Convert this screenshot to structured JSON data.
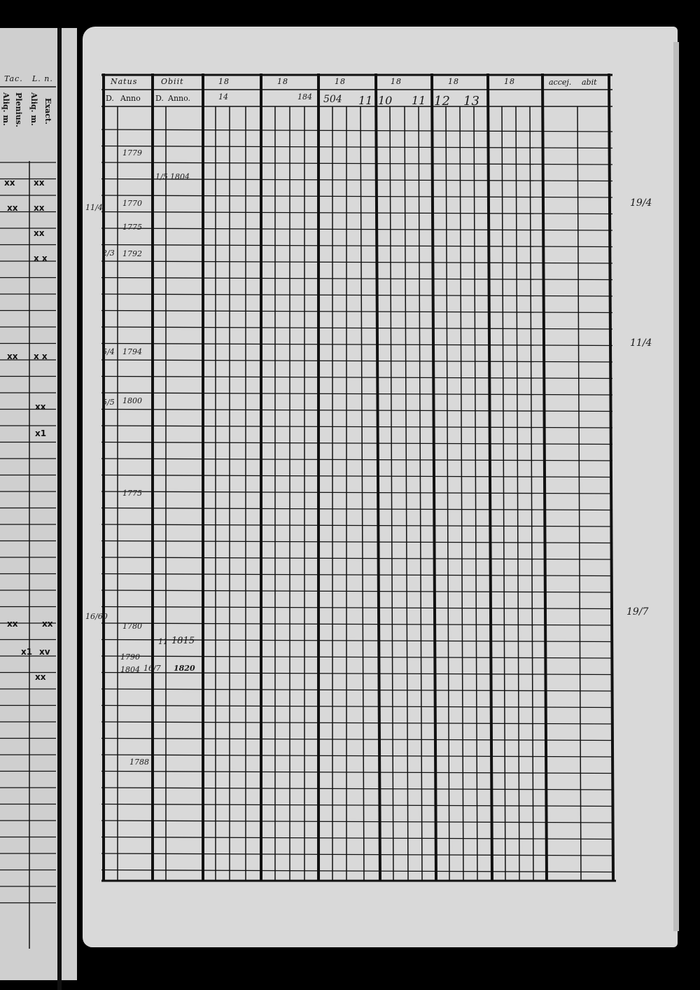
{
  "left_page": {
    "headers": [
      "Tac.",
      "L. n."
    ],
    "subheaders": [
      "Aliq. m.",
      "Plenius.",
      "Aliq. m.",
      "Exact."
    ],
    "marks": [
      "xx",
      "xx",
      "xx",
      "xx",
      "xx",
      "x x",
      "xx",
      "x x",
      "xx",
      "x1",
      "xx",
      "xx",
      "x1",
      "xv",
      "xx"
    ]
  },
  "register": {
    "headers": [
      "Natus",
      "Obiit",
      "18",
      "18",
      "18",
      "18",
      "18",
      "18",
      "accej.",
      "abit"
    ],
    "subheaders": [
      "D.",
      "Anno",
      "D.",
      "Anno."
    ],
    "header_handwriting": [
      "14",
      "184",
      "504",
      "11",
      "10",
      "11",
      "12",
      "13"
    ],
    "entries": [
      {
        "year": "1779"
      },
      {
        "day": "1/5",
        "year": "1804"
      },
      {
        "day": "11/4",
        "year": "1770"
      },
      {
        "year": "1775"
      },
      {
        "day": "2/3",
        "year": "1792"
      },
      {
        "day": "5/4",
        "year": "1794"
      },
      {
        "day": "5/5",
        "year": "1800"
      },
      {
        "year": "1775"
      },
      {
        "day": "16/60",
        "year": "1780"
      },
      {
        "year": "1790",
        "death_day": "11",
        "death_year": "1815"
      },
      {
        "year": "1804",
        "death_day": "16/7",
        "death_year": "1820"
      },
      {
        "year": "1788"
      }
    ],
    "margin_notes": [
      "19/4",
      "11/4",
      "19/7"
    ]
  }
}
